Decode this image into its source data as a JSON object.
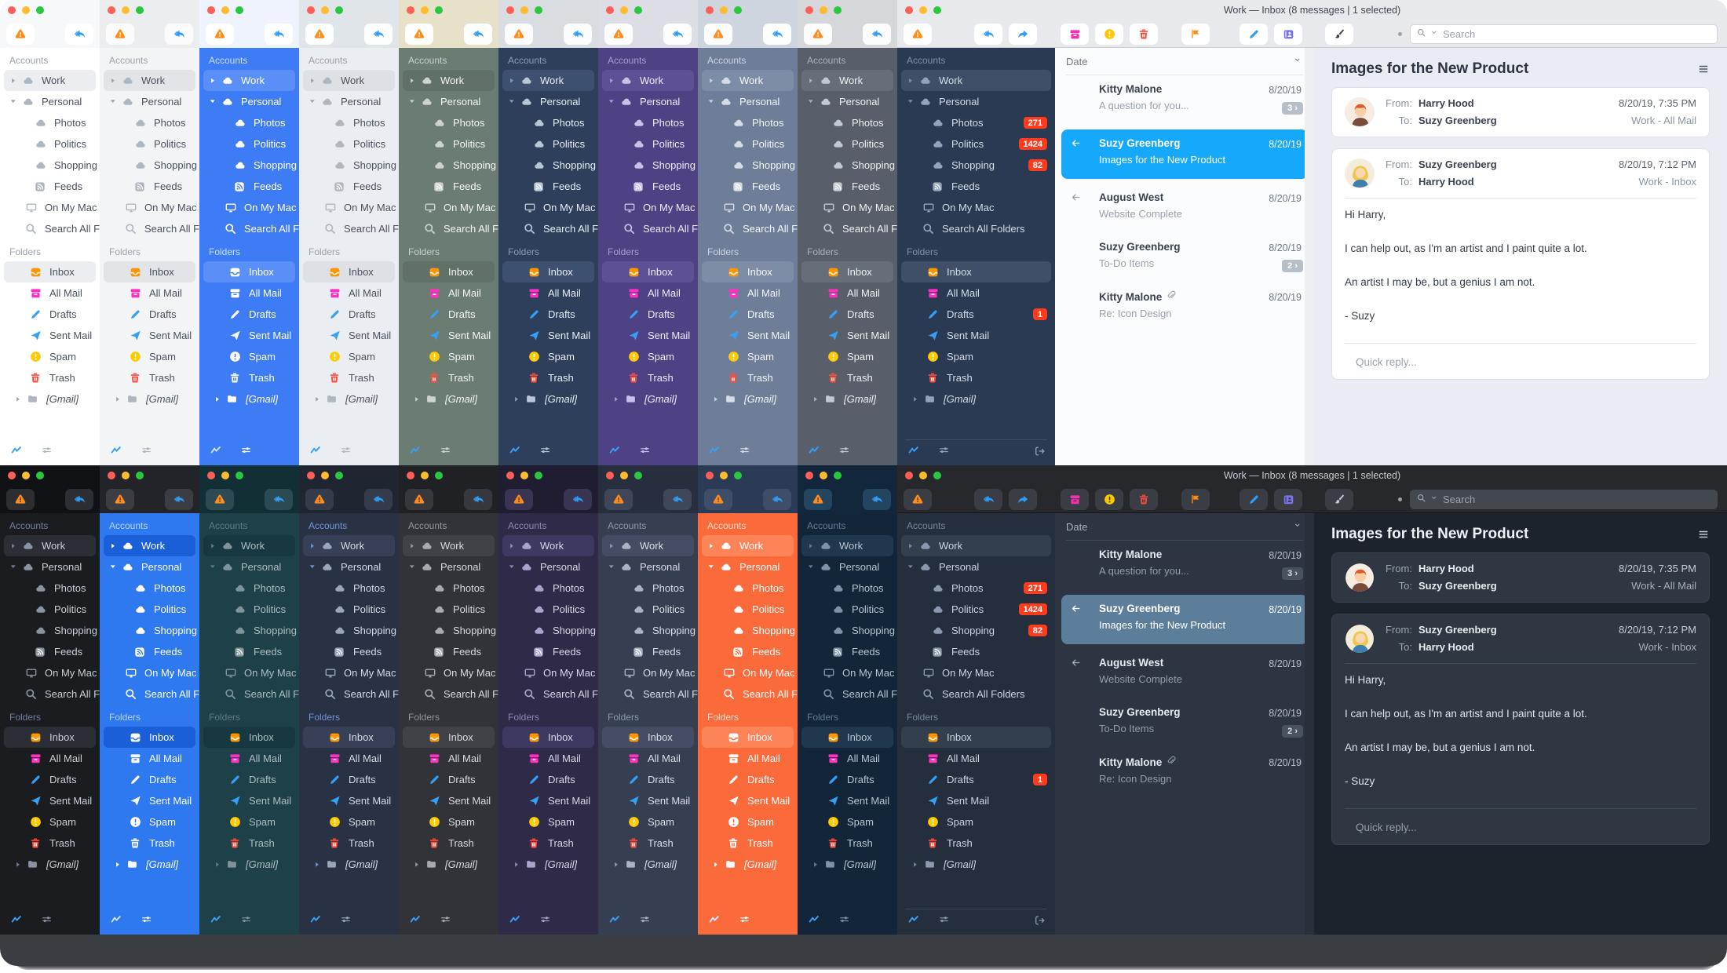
{
  "window": {
    "title": "Work — Inbox (8 messages | 1 selected)",
    "search_placeholder": "Search"
  },
  "sidebar": {
    "accounts_label": "Accounts",
    "folders_label": "Folders",
    "accounts": [
      {
        "label": "Work",
        "icon": "cloud",
        "disc": "right",
        "pad": 10,
        "selected": true
      },
      {
        "label": "Personal",
        "icon": "cloud",
        "disc": "down",
        "pad": 10
      },
      {
        "label": "Photos",
        "icon": "cloud",
        "pad": 44,
        "badge": "271"
      },
      {
        "label": "Politics",
        "icon": "cloud",
        "pad": 44,
        "badge": "1424"
      },
      {
        "label": "Shopping",
        "icon": "cloud",
        "pad": 44,
        "badge": "82"
      },
      {
        "label": "Feeds",
        "icon": "rss",
        "pad": 44
      },
      {
        "label": "On My Mac",
        "icon": "monitor",
        "pad": 32
      },
      {
        "label": "Search All Folders",
        "icon": "search",
        "pad": 32
      }
    ],
    "folders": [
      {
        "label": "Inbox",
        "icon": "inbox",
        "pad": 38,
        "selected": true
      },
      {
        "label": "All Mail",
        "icon": "allmail",
        "pad": 38
      },
      {
        "label": "Drafts",
        "icon": "pencil",
        "pad": 38,
        "badge": "1"
      },
      {
        "label": "Sent Mail",
        "icon": "send",
        "pad": 38
      },
      {
        "label": "Spam",
        "icon": "spam",
        "pad": 38
      },
      {
        "label": "Trash",
        "icon": "trash",
        "pad": 38
      },
      {
        "label": "[Gmail]",
        "icon": "folder",
        "disc": "right",
        "pad": 16,
        "italic": true
      }
    ]
  },
  "themes_top": [
    {
      "name": "white",
      "tb": "#f7f8f9",
      "btn": "#ffffff",
      "bg": "#ffffff",
      "txt": "#49525f",
      "sel": "#ebedf0",
      "lbl": "#9aa2ac",
      "icn": "#aeb6c0",
      "mono": false
    },
    {
      "name": "light-gray",
      "tb": "#ecedee",
      "btn": "#fbfbfc",
      "bg": "#f3f4f6",
      "txt": "#49525f",
      "sel": "#e2e4e8",
      "lbl": "#9aa2ac",
      "icn": "#aeb6c0",
      "mono": false
    },
    {
      "name": "blue",
      "tb": "#eef3fd",
      "btn": "#ffffff",
      "bg": "#3e7cf6",
      "txt": "#ffffff",
      "sel": "#5a8ff8",
      "lbl": "#cddffc",
      "icn": "#ffffff",
      "mono": true
    },
    {
      "name": "pale-slate",
      "tb": "#e0e5ea",
      "btn": "#fcfdfd",
      "bg": "#eaedf1",
      "txt": "#49525f",
      "sel": "#dde0e5",
      "lbl": "#9aa2ac",
      "icn": "#aeb6c0",
      "mono": false
    },
    {
      "name": "sage",
      "tb": "#e7e1c9",
      "btn": "#fdfdfb",
      "bg": "#6b7c73",
      "txt": "#f4f6f4",
      "sel": "#617167",
      "lbl": "#c9d1c9",
      "icn": "#ccd4cd",
      "mono": false
    },
    {
      "name": "navy",
      "tb": "#d9dce0",
      "btn": "#fcfcfd",
      "bg": "#2d3f5b",
      "txt": "#e9eef5",
      "sel": "#3d5070",
      "lbl": "#8c9cb3",
      "icn": "#b9c6d7",
      "mono": false
    },
    {
      "name": "purple",
      "tb": "#dcdde5",
      "btn": "#fdfdfe",
      "bg": "#4e4184",
      "txt": "#efecf9",
      "sel": "#5e5095",
      "lbl": "#a89fd0",
      "icn": "#c9c2e8",
      "mono": false
    },
    {
      "name": "slate-blue",
      "tb": "#cfd5de",
      "btn": "#fcfdfd",
      "bg": "#6f7e98",
      "txt": "#f3f5f9",
      "sel": "#7e8da6",
      "lbl": "#cbd3df",
      "icn": "#d6dce6",
      "mono": false
    },
    {
      "name": "graphite",
      "tb": "#d5d7db",
      "btn": "#fcfcfd",
      "bg": "#585f6a",
      "txt": "#eff1f4",
      "sel": "#666e79",
      "lbl": "#aab1ba",
      "icn": "#c2c9d1",
      "mono": false
    }
  ],
  "themes_bottom": [
    {
      "name": "black",
      "tb": "#101215",
      "btn": "#2c2e33",
      "bg": "#1a1c20",
      "txt": "#c9cfd8",
      "sel": "#2b2e34",
      "lbl": "#6e80a0",
      "icn": "#8b94a2",
      "mono": false
    },
    {
      "name": "bright-blue",
      "tb": "#232429",
      "btn": "#3b3d43",
      "bg": "#2e79ef",
      "txt": "#ffffff",
      "sel": "#1b5fd8",
      "lbl": "#b9d2fb",
      "icn": "#ffffff",
      "mono": true
    },
    {
      "name": "teal",
      "tb": "#132f36",
      "btn": "#2b4a52",
      "bg": "#1e4149",
      "txt": "#aebcc0",
      "sel": "#173840",
      "lbl": "#5f7a80",
      "icn": "#7f949a",
      "mono": false
    },
    {
      "name": "dark-slate",
      "tb": "#1f2531",
      "btn": "#343c4c",
      "bg": "#293144",
      "txt": "#d5dbe5",
      "sel": "#374056",
      "lbl": "#7293d8",
      "icn": "#9aa6bb",
      "mono": false
    },
    {
      "name": "charcoal",
      "tb": "#202124",
      "btn": "#36383d",
      "bg": "#323338",
      "txt": "#d7dade",
      "sel": "#404247",
      "lbl": "#90959c",
      "icn": "#a6abb2",
      "mono": false
    },
    {
      "name": "dark-purple",
      "tb": "#201d32",
      "btn": "#383452",
      "bg": "#2e2a47",
      "txt": "#dad7e9",
      "sel": "#3e3961",
      "lbl": "#8e86b6",
      "icn": "#aaa3cc",
      "mono": false
    },
    {
      "name": "dark-blue-gray",
      "tb": "#272e3d",
      "btn": "#3e4657",
      "bg": "#363e51",
      "txt": "#dadfe8",
      "sel": "#444d63",
      "lbl": "#8c98ae",
      "icn": "#a9b3c4",
      "mono": false
    },
    {
      "name": "orange",
      "tb": "#2b3b56",
      "btn": "#3e4e69",
      "bg": "#fb6a3b",
      "txt": "#ffffff",
      "sel": "#fc8458",
      "lbl": "#ffd9c9",
      "icn": "#ffffff",
      "mono": true
    },
    {
      "name": "dark-navy",
      "tb": "#12273c",
      "btn": "#24455f",
      "bg": "#132538",
      "txt": "#b9c5d2",
      "sel": "#20374e",
      "lbl": "#5f7a95",
      "icn": "#7e93a9",
      "mono": false
    }
  ],
  "main_light": {
    "chrome": "#e7e9ec",
    "chrome_border": "#c9ccd1",
    "title_txt": "#3f4650",
    "btn": "#ffffff",
    "side": {
      "bg": "#2a3a52",
      "txt": "#d4dde8",
      "sel": "#3e4f67",
      "lbl": "#7e90a8",
      "icn": "#93a4ba",
      "mono": false
    },
    "list_bg": "#fbfcfd",
    "list_border": "#e4e7eb",
    "date_txt": "#707a86",
    "sender": "#39424e",
    "date2": "#6e7884",
    "prev": "#98a2ad",
    "lbadge_bg": "#b6bfc8",
    "lbadge_txt": "#ffffff",
    "sel_bg": "#16a8fa",
    "sel_txt": "#ffffff",
    "arrow": "#97a1ac",
    "scroll": "#edeff2",
    "pane_bg": "#e9ecf3",
    "pane_title": "#2b3440",
    "card": "#ffffff",
    "card_border": "#dee2e8",
    "plabel": "#8a94a0",
    "pname": "#39424e",
    "pdate": "#5a646f",
    "pmail": "#8a94a0",
    "pbody": "#343d49",
    "pdivider": "#e2e5ea",
    "qreply": "#9aa4af",
    "hamb": "#4a5564",
    "search_bg": "#ffffff",
    "search_border": "#d2d6db",
    "search_txt": "#99a2ad",
    "brush": "#3d434b"
  },
  "main_dark": {
    "chrome": "#26282c",
    "chrome_border": "#17181b",
    "title_txt": "#c6cbd3",
    "btn": "#3a3d43",
    "side": {
      "bg": "#242e3c",
      "txt": "#ccd4de",
      "sel": "#343f4e",
      "lbl": "#76879c",
      "icn": "#8a99ad",
      "mono": false
    },
    "list_bg": "#2d3542",
    "list_border": "#414a59",
    "date_txt": "#a9b2bf",
    "sender": "#e6ebf1",
    "date2": "#b9c1cc",
    "prev": "#929daa",
    "lbadge_bg": "#49525f",
    "lbadge_txt": "#d6dde5",
    "sel_bg": "#5d7e9b",
    "sel_txt": "#ffffff",
    "arrow": "#9fb0c0",
    "scroll": "#29303c",
    "pane_bg": "#1d232c",
    "pane_title": "#eef1f5",
    "card": "#2f3742",
    "card_border": "#39414d",
    "plabel": "#9aa4b0",
    "pname": "#e9edf2",
    "pdate": "#c6cdd5",
    "pmail": "#a6afba",
    "pbody": "#dee4eb",
    "pdivider": "#434c59",
    "qreply": "#929ca8",
    "hamb": "#c3cad2",
    "search_bg": "#43474e",
    "search_border": "#43474e",
    "search_txt": "#9aa2ad",
    "brush": "#c8cdd4"
  },
  "toolbar_icons": {
    "alert": "#ff8c1a",
    "replyall": "#2f9df6",
    "forward": "#2f9df6",
    "archive": "#f42fb0",
    "spam": "#ffc702",
    "trash": "#f64c3e",
    "flag": "#ff8b17",
    "compose": "#2f9df6",
    "contacts": "#7a72f0"
  },
  "traffic": {
    "close": "#ff5f57",
    "min": "#febc2e",
    "zoom": "#28c840"
  },
  "badge_color": "#ff3b1e",
  "list": {
    "header": "Date",
    "messages": [
      {
        "sender": "Kitty Malone",
        "date": "8/20/19",
        "preview": "A question for you...",
        "badge": "3 ›"
      },
      {
        "sender": "Suzy Greenberg",
        "date": "8/20/19",
        "preview": "Images for the New Product",
        "selected": true,
        "replied": true
      },
      {
        "sender": "August West",
        "date": "8/20/19",
        "preview": "Website Complete",
        "replied": true
      },
      {
        "sender": "Suzy Greenberg",
        "date": "8/20/19",
        "preview": "To-Do Items",
        "badge": "2 ›"
      },
      {
        "sender": "Kitty Malone",
        "date": "8/20/19",
        "preview": "Re: Icon Design",
        "attachment": true
      }
    ]
  },
  "pane": {
    "title": "Images for the New Product",
    "from_label": "From:",
    "to_label": "To:",
    "messages": [
      {
        "from": "Harry Hood",
        "to": "Suzy Greenberg",
        "datetime": "8/20/19, 7:35 PM",
        "mailbox": "Work - All Mail",
        "avatar": "man"
      },
      {
        "from": "Suzy Greenberg",
        "to": "Harry Hood",
        "datetime": "8/20/19, 7:12 PM",
        "mailbox": "Work - Inbox",
        "avatar": "woman",
        "body": [
          "Hi Harry,",
          "I can help out, as I'm an artist and I paint quite a lot.",
          "An artist I may be, but a genius I am not.",
          "- Suzy"
        ],
        "quick_reply": "Quick reply..."
      }
    ]
  },
  "stack_layers": [
    "#3a3d42",
    "#4b4e53",
    "#5e6165",
    "#747679",
    "#8f9194",
    "#abadaf"
  ]
}
